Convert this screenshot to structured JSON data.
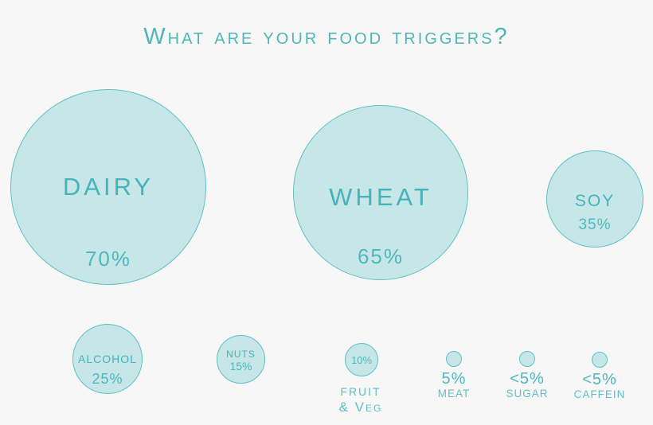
{
  "title": "What are your food triggers?",
  "colors": {
    "background": "#f7f7f7",
    "bubble_fill": "#c6e6e8",
    "bubble_stroke": "#5fc0c5",
    "text_teal": "#46b2b9"
  },
  "chart_data": {
    "type": "bubble",
    "title": "What are your food triggers?",
    "unit": "percent of respondents",
    "legend": "none",
    "layout_hint": "bubbles sized proportionally to value; three large bubbles on top row, six smaller along bottom row",
    "items": [
      {
        "label": "DAIRY",
        "value": 70,
        "value_label": "70%",
        "value_qualifier": ""
      },
      {
        "label": "WHEAT",
        "value": 65,
        "value_label": "65%",
        "value_qualifier": ""
      },
      {
        "label": "SOY",
        "value": 35,
        "value_label": "35%",
        "value_qualifier": ""
      },
      {
        "label": "ALCOHOL",
        "value": 25,
        "value_label": "25%",
        "value_qualifier": ""
      },
      {
        "label": "NUTS",
        "value": 15,
        "value_label": "15%",
        "value_qualifier": ""
      },
      {
        "label": "FRUIT & VEG",
        "label_line1": "FRUIT",
        "label_line2": "& Veg",
        "value": 10,
        "value_label": "10%",
        "value_qualifier": ""
      },
      {
        "label": "MEAT",
        "value": 5,
        "value_label": "5%",
        "value_qualifier": ""
      },
      {
        "label": "SUGAR",
        "value": 5,
        "value_label": "<5%",
        "value_qualifier": "<"
      },
      {
        "label": "CAFFEIN",
        "value": 5,
        "value_label": "<5%",
        "value_qualifier": "<"
      }
    ]
  }
}
